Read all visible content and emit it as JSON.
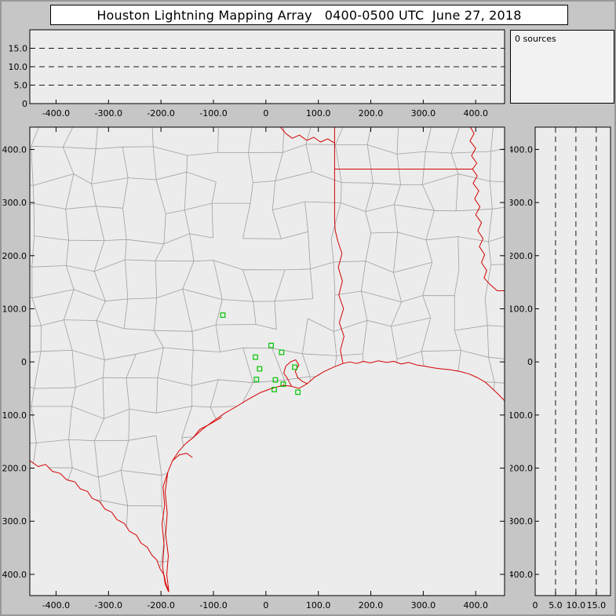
{
  "title": "Houston Lightning Mapping Array   0400-0500 UTC  June 27, 2018",
  "status": {
    "sources_label": "0 sources"
  },
  "colors": {
    "window_bg": "#c6c6c6",
    "titlebar_bg": "#ffffff",
    "panel_bg": "#ececec",
    "border": "#000000",
    "county_line": "#a0a0a0",
    "state_line": "#d40000",
    "station": "#00c400",
    "dash_line": "#1a1a1a"
  },
  "chart_data": [
    {
      "id": "alt_vs_ew",
      "type": "scatter",
      "title": "",
      "xlim": [
        -450,
        455
      ],
      "ylim": [
        0,
        20
      ],
      "x_ticks": [
        -400,
        -300,
        -200,
        -100,
        0,
        100,
        200,
        300,
        400
      ],
      "x_tick_labels": [
        "-400.0",
        "-300.0",
        "-200.0",
        "-100.0",
        "0",
        "100.0",
        "200.0",
        "300.0",
        "400.0"
      ],
      "y_ticks": [
        15,
        10,
        5,
        0
      ],
      "y_tick_labels": [
        "15.0",
        "10.0",
        "5.0",
        "0"
      ],
      "gridlines_y": [
        5,
        10,
        15
      ],
      "grid": "dashed",
      "points": []
    },
    {
      "id": "plan_map",
      "type": "scatter",
      "title": "",
      "xlim": [
        -450,
        455
      ],
      "ylim": [
        -440,
        442
      ],
      "x_ticks": [
        -400,
        -300,
        -200,
        -100,
        0,
        100,
        200,
        300,
        400
      ],
      "x_tick_labels": [
        "-400.0",
        "-300.0",
        "-200.0",
        "-100.0",
        "0",
        "100.0",
        "200.0",
        "300.0",
        "400.0"
      ],
      "y_ticks": [
        400,
        300,
        200,
        100,
        0,
        -100,
        -200,
        -300,
        -400
      ],
      "y_tick_labels": [
        "400.0",
        "300.0",
        "200.0",
        "100.0",
        "0",
        "-100.0",
        "-200.0",
        "-300.0",
        "-400.0"
      ],
      "points": [],
      "stations": [
        [
          -82,
          88
        ],
        [
          10,
          31
        ],
        [
          -20,
          9
        ],
        [
          30,
          18
        ],
        [
          -12,
          -13
        ],
        [
          -18,
          -33
        ],
        [
          18,
          -34
        ],
        [
          55,
          -10
        ],
        [
          16,
          -52
        ],
        [
          33,
          -42
        ],
        [
          61,
          -57
        ]
      ],
      "geo": {
        "coast": [
          [
            -185,
            -433
          ],
          [
            -189,
            -400
          ],
          [
            -186,
            -365
          ],
          [
            -191,
            -325
          ],
          [
            -188,
            -285
          ],
          [
            -192,
            -245
          ],
          [
            -187,
            -208
          ],
          [
            -178,
            -186
          ],
          [
            -166,
            -168
          ],
          [
            -152,
            -153
          ],
          [
            -138,
            -142
          ],
          [
            -120,
            -126
          ],
          [
            -101,
            -112
          ],
          [
            -79,
            -97
          ],
          [
            -56,
            -84
          ],
          [
            -33,
            -70
          ],
          [
            -11,
            -58
          ],
          [
            11,
            -50
          ],
          [
            33,
            -44
          ],
          [
            49,
            -46
          ],
          [
            63,
            -50
          ],
          [
            79,
            -41
          ],
          [
            93,
            -29
          ],
          [
            111,
            -18
          ],
          [
            131,
            -9
          ],
          [
            147,
            -3
          ],
          [
            160,
            0
          ],
          [
            173,
            -3
          ],
          [
            186,
            1
          ],
          [
            199,
            -2
          ],
          [
            214,
            2
          ],
          [
            230,
            -1
          ],
          [
            244,
            1
          ],
          [
            258,
            -4
          ],
          [
            272,
            -1
          ],
          [
            288,
            -6
          ],
          [
            303,
            -8
          ],
          [
            318,
            -11
          ],
          [
            334,
            -13
          ],
          [
            352,
            -15
          ],
          [
            370,
            -18
          ],
          [
            388,
            -23
          ],
          [
            404,
            -30
          ],
          [
            418,
            -38
          ],
          [
            430,
            -49
          ],
          [
            441,
            -59
          ],
          [
            452,
            -70
          ],
          [
            460,
            -78
          ]
        ],
        "lagoon": [
          [
            -187,
            -208
          ],
          [
            -196,
            -235
          ],
          [
            -193,
            -270
          ],
          [
            -198,
            -305
          ],
          [
            -194,
            -345
          ],
          [
            -197,
            -385
          ],
          [
            -192,
            -418
          ],
          [
            -186,
            -432
          ]
        ],
        "rio_grande": [
          [
            -450,
            -186
          ],
          [
            -434,
            -197
          ],
          [
            -420,
            -193
          ],
          [
            -407,
            -206
          ],
          [
            -392,
            -210
          ],
          [
            -380,
            -222
          ],
          [
            -364,
            -226
          ],
          [
            -354,
            -239
          ],
          [
            -340,
            -244
          ],
          [
            -331,
            -257
          ],
          [
            -317,
            -263
          ],
          [
            -307,
            -277
          ],
          [
            -294,
            -283
          ],
          [
            -284,
            -297
          ],
          [
            -270,
            -304
          ],
          [
            -260,
            -319
          ],
          [
            -247,
            -326
          ],
          [
            -238,
            -341
          ],
          [
            -226,
            -349
          ],
          [
            -218,
            -363
          ],
          [
            -208,
            -373
          ],
          [
            -202,
            -389
          ],
          [
            -194,
            -401
          ],
          [
            -191,
            -416
          ],
          [
            -185,
            -433
          ]
        ],
        "sabine": [
          [
            147,
            -3
          ],
          [
            142,
            22
          ],
          [
            149,
            48
          ],
          [
            140,
            74
          ],
          [
            148,
            100
          ],
          [
            139,
            126
          ],
          [
            146,
            152
          ],
          [
            138,
            178
          ],
          [
            145,
            204
          ],
          [
            137,
            228
          ],
          [
            132,
            248
          ],
          [
            131,
            268
          ],
          [
            131,
            363
          ]
        ],
        "border_33n": [
          [
            131,
            363
          ],
          [
            394,
            363
          ]
        ],
        "border_94w": [
          [
            131,
            363
          ],
          [
            131,
            442
          ]
        ],
        "red_river": [
          [
            131,
            412
          ],
          [
            118,
            420
          ],
          [
            104,
            414
          ],
          [
            91,
            423
          ],
          [
            78,
            417
          ],
          [
            64,
            427
          ],
          [
            50,
            421
          ],
          [
            38,
            430
          ],
          [
            28,
            442
          ]
        ],
        "mississippi": [
          [
            390,
            442
          ],
          [
            397,
            430
          ],
          [
            389,
            416
          ],
          [
            400,
            402
          ],
          [
            392,
            388
          ],
          [
            402,
            374
          ],
          [
            394,
            363
          ],
          [
            403,
            350
          ],
          [
            395,
            336
          ],
          [
            406,
            322
          ],
          [
            398,
            307
          ],
          [
            408,
            292
          ],
          [
            400,
            277
          ],
          [
            411,
            262
          ],
          [
            404,
            247
          ],
          [
            414,
            232
          ],
          [
            407,
            217
          ],
          [
            417,
            202
          ],
          [
            411,
            187
          ],
          [
            421,
            172
          ],
          [
            416,
            158
          ],
          [
            427,
            146
          ],
          [
            441,
            134
          ]
        ],
        "border_31n": [
          [
            441,
            134
          ],
          [
            460,
            134
          ]
        ],
        "galveston_bay": [
          [
            49,
            -46
          ],
          [
            41,
            -31
          ],
          [
            34,
            -21
          ],
          [
            38,
            -8
          ],
          [
            47,
            0
          ],
          [
            57,
            4
          ],
          [
            63,
            -6
          ],
          [
            56,
            -18
          ],
          [
            61,
            -30
          ],
          [
            70,
            -37
          ],
          [
            79,
            -41
          ]
        ],
        "matagorda_bay": [
          [
            -138,
            -142
          ],
          [
            -126,
            -127
          ],
          [
            -110,
            -119
          ],
          [
            -96,
            -111
          ],
          [
            -84,
            -104
          ]
        ],
        "corpus_bay": [
          [
            -178,
            -186
          ],
          [
            -165,
            -175
          ],
          [
            -151,
            -172
          ],
          [
            -140,
            -180
          ]
        ]
      }
    },
    {
      "id": "alt_vs_ns",
      "type": "scatter",
      "title": "",
      "xlim": [
        0,
        18.5
      ],
      "ylim": [
        -440,
        442
      ],
      "x_ticks": [
        0,
        5,
        10,
        15
      ],
      "x_tick_labels": [
        "0",
        "5.0",
        "10.0",
        "15.0"
      ],
      "y_ticks": [
        400,
        300,
        200,
        100,
        0,
        -100,
        -200,
        -300,
        -400
      ],
      "y_tick_labels": [
        "400.0",
        "300.0",
        "200.0",
        "100.0",
        "0",
        "-100.0",
        "-200.0",
        "-300.0",
        "-400.0"
      ],
      "gridlines_x": [
        5,
        10,
        15
      ],
      "grid": "dashed",
      "points": []
    }
  ]
}
